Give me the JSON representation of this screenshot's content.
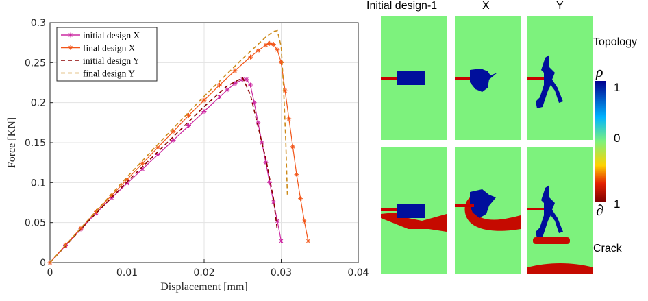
{
  "chart_data": {
    "type": "line",
    "xlabel": "Displacement [mm]",
    "ylabel": "Force [KN]",
    "xlim": [
      0,
      0.04
    ],
    "ylim": [
      0,
      0.3
    ],
    "xticks": [
      "0",
      "0.01",
      "0.02",
      "0.03",
      "0.04"
    ],
    "yticks": [
      "0",
      "0.05",
      "0.1",
      "0.15",
      "0.2",
      "0.25",
      "0.3"
    ],
    "grid": true,
    "legend_position": "top-left",
    "series": [
      {
        "name": "initial design X",
        "color": "#cc2aa2",
        "style": "solid",
        "marker": "star",
        "x": [
          0,
          0.002,
          0.004,
          0.006,
          0.008,
          0.01,
          0.012,
          0.014,
          0.016,
          0.018,
          0.02,
          0.022,
          0.023,
          0.024,
          0.025,
          0.0255,
          0.026,
          0.0265,
          0.027,
          0.0275,
          0.028,
          0.0285,
          0.029,
          0.0295,
          0.03
        ],
        "y": [
          0,
          0.021,
          0.042,
          0.062,
          0.081,
          0.099,
          0.117,
          0.135,
          0.153,
          0.171,
          0.189,
          0.207,
          0.216,
          0.224,
          0.229,
          0.229,
          0.222,
          0.2,
          0.175,
          0.15,
          0.125,
          0.1,
          0.076,
          0.052,
          0.027
        ]
      },
      {
        "name": "final design X",
        "color": "#f25518",
        "style": "solid",
        "marker": "star",
        "x": [
          0,
          0.002,
          0.004,
          0.006,
          0.008,
          0.01,
          0.012,
          0.014,
          0.016,
          0.018,
          0.02,
          0.022,
          0.024,
          0.026,
          0.027,
          0.028,
          0.0285,
          0.029,
          0.0295,
          0.03,
          0.0305,
          0.031,
          0.0315,
          0.032,
          0.0325,
          0.033,
          0.0335
        ],
        "y": [
          0,
          0.022,
          0.043,
          0.064,
          0.084,
          0.104,
          0.124,
          0.144,
          0.164,
          0.184,
          0.203,
          0.222,
          0.24,
          0.257,
          0.265,
          0.272,
          0.274,
          0.273,
          0.266,
          0.25,
          0.215,
          0.18,
          0.145,
          0.11,
          0.08,
          0.052,
          0.027
        ]
      },
      {
        "name": "initial design Y",
        "color": "#8c0000",
        "style": "dashed",
        "marker": "none",
        "x": [
          0,
          0.005,
          0.01,
          0.015,
          0.02,
          0.023,
          0.025,
          0.026,
          0.027,
          0.028,
          0.029,
          0.0295
        ],
        "y": [
          0,
          0.052,
          0.101,
          0.148,
          0.195,
          0.221,
          0.231,
          0.21,
          0.17,
          0.13,
          0.08,
          0.04
        ]
      },
      {
        "name": "final design Y",
        "color": "#cc8a1a",
        "style": "dashed",
        "marker": "none",
        "x": [
          0,
          0.005,
          0.01,
          0.015,
          0.02,
          0.025,
          0.027,
          0.028,
          0.029,
          0.0295,
          0.03,
          0.0303,
          0.0306,
          0.0308
        ],
        "y": [
          0,
          0.054,
          0.107,
          0.158,
          0.208,
          0.255,
          0.273,
          0.282,
          0.289,
          0.29,
          0.27,
          0.22,
          0.15,
          0.085
        ]
      }
    ]
  },
  "panels": {
    "columns": [
      "Initial design-1",
      "X",
      "Y"
    ],
    "rows": [
      "Topology",
      "Crack"
    ],
    "colorbar": {
      "symbol_top": "ρ",
      "symbol_bottom": "∂",
      "labels": [
        "1",
        "0",
        "1"
      ],
      "colors": [
        "#00008f",
        "#00b4ff",
        "#7df27d",
        "#ffd200",
        "#e32000",
        "#800000"
      ]
    },
    "colors": {
      "background": "#7df27d",
      "solid": "#000f9c",
      "crack": "#c50a00",
      "notch": "#c80000"
    }
  }
}
